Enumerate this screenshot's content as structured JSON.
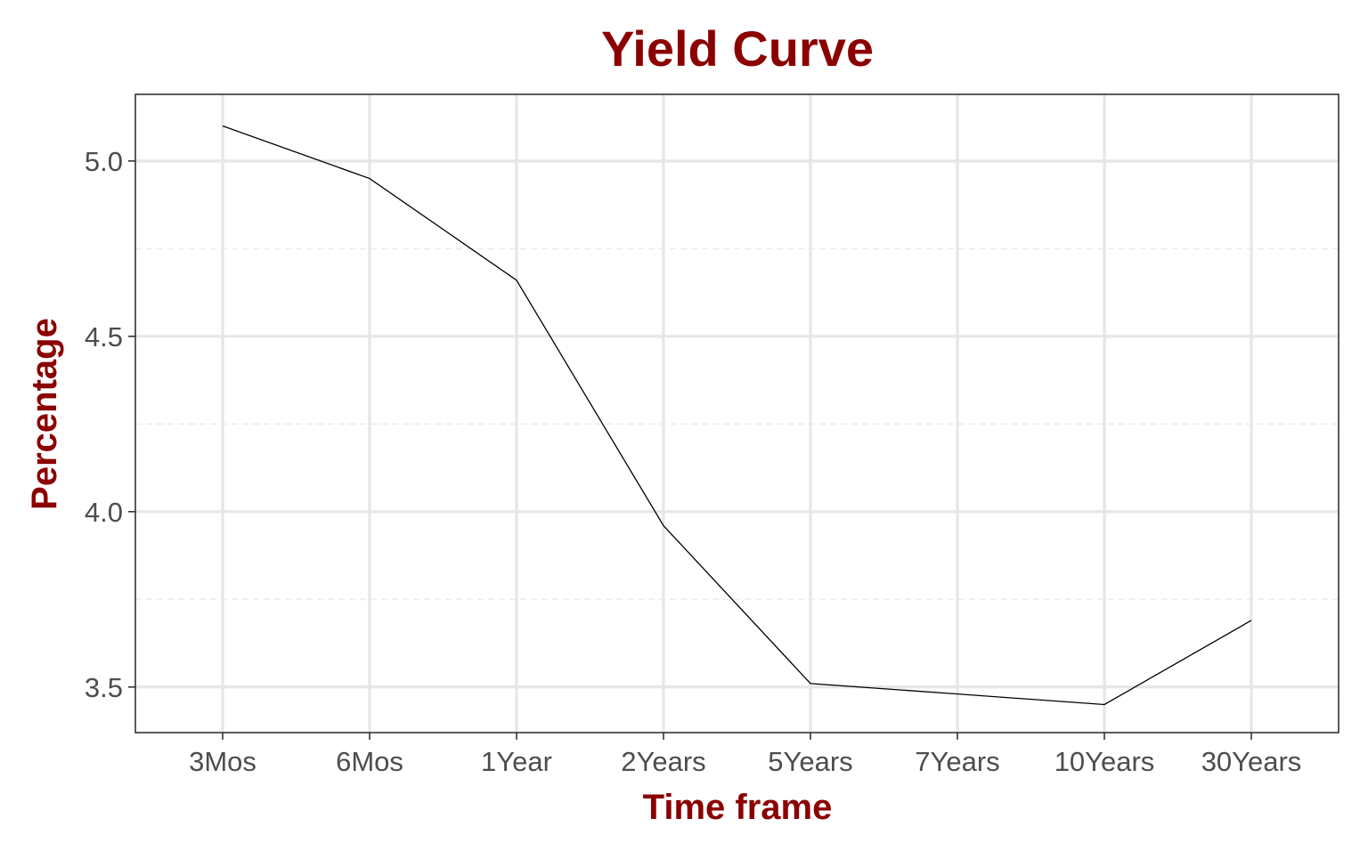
{
  "chart_data": {
    "type": "line",
    "title": "Yield Curve",
    "xlabel": "Time frame",
    "ylabel": "Percentage",
    "categories": [
      "3Mos",
      "6Mos",
      "1Year",
      "2Years",
      "5Years",
      "7Years",
      "10Years",
      "30Years"
    ],
    "series": [
      {
        "values": [
          5.1,
          4.95,
          4.66,
          3.96,
          3.51,
          3.48,
          3.45,
          3.69
        ]
      }
    ],
    "ylim": [
      3.37,
      5.19
    ],
    "y_ticks": [
      "3.5",
      "4.0",
      "4.5",
      "5.0"
    ],
    "y_minor_ticks": [
      3.75,
      4.25,
      4.75
    ],
    "grid": true,
    "colors": {
      "title": "#8b0000",
      "axis_title": "#8b0000",
      "line": "#000000"
    }
  }
}
